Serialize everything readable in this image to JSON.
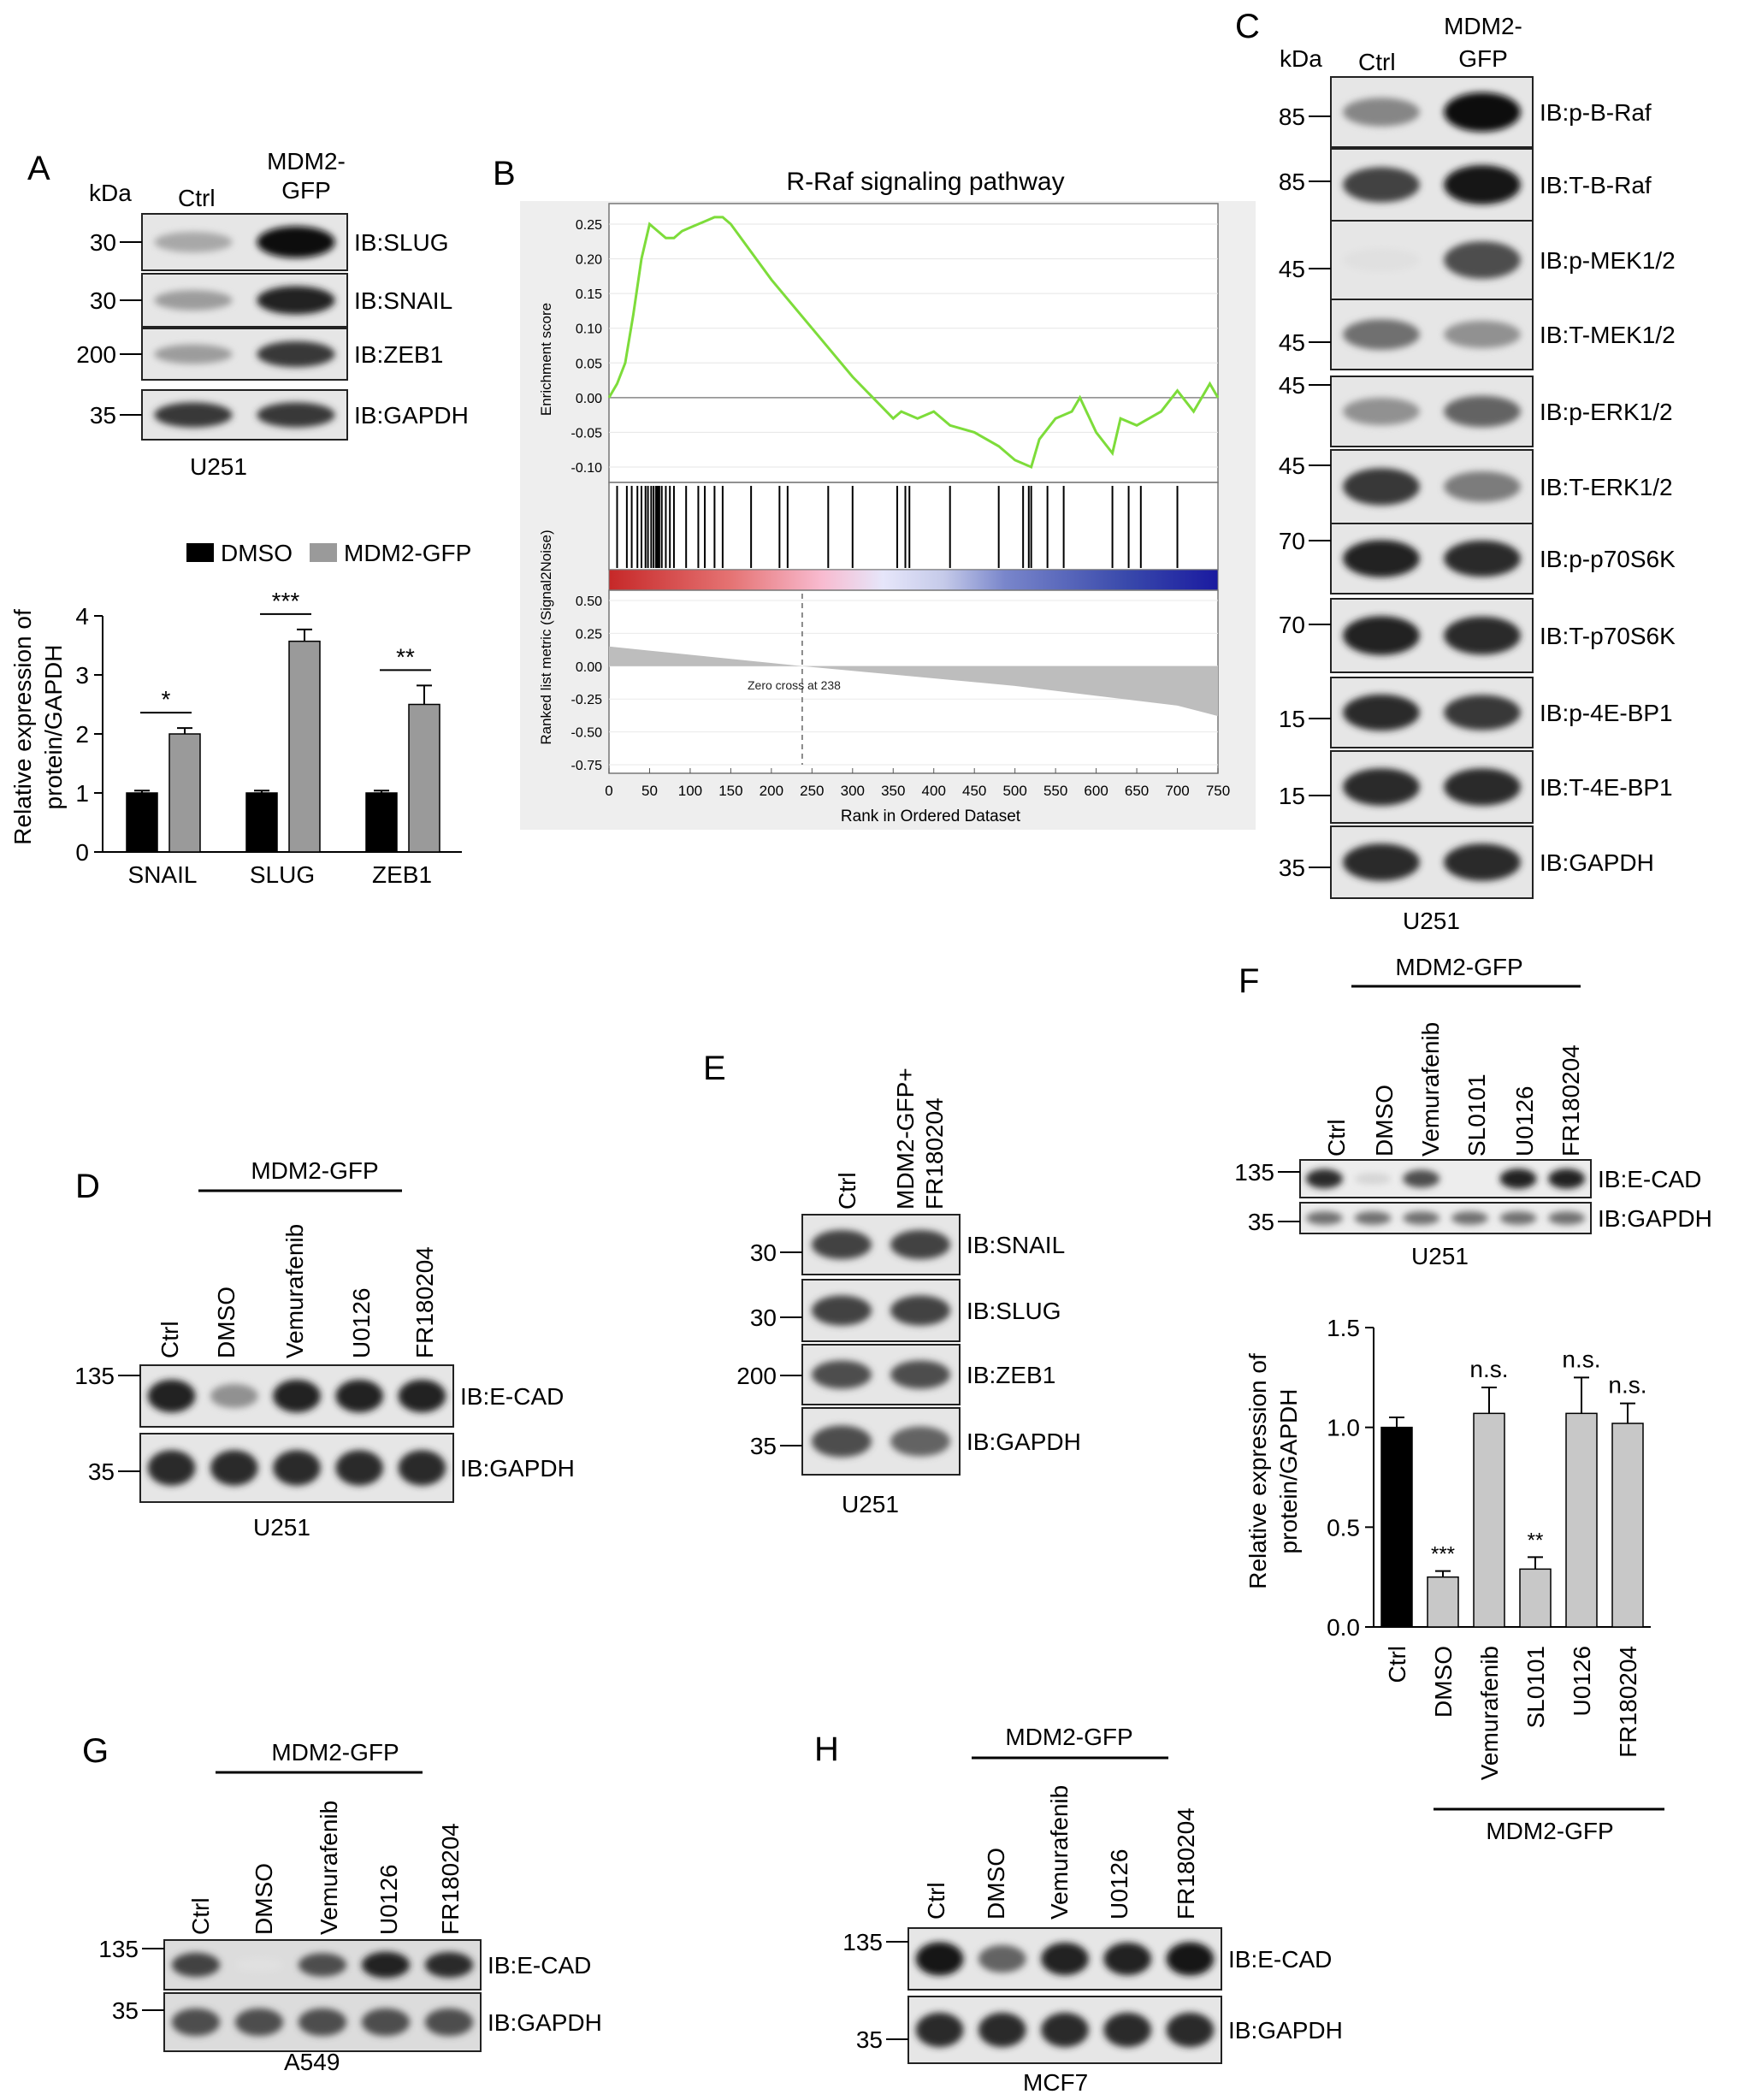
{
  "panels": {
    "A": {
      "letter": "A",
      "kda": "kDa",
      "lanes": [
        "Ctrl",
        "MDM2-\nGFP"
      ],
      "markers": [
        "30",
        "30",
        "200",
        "35"
      ],
      "blots": [
        "IB:SLUG",
        "IB:SNAIL",
        "IB:ZEB1",
        "IB:GAPDH"
      ],
      "cell_line": "U251",
      "legend": [
        "DMSO",
        "MDM2-GFP"
      ],
      "ylabel": "Relative expression of\nprotein/GAPDH"
    },
    "B": {
      "letter": "B",
      "title": "R-Raf signaling pathway",
      "es_ylabel": "Enrichment score",
      "rank_ylabel": "Ranked list metric (Signal2Noise)",
      "xlabel": "Rank in Ordered Dataset",
      "zero_cross": "Zero cross at 238"
    },
    "C": {
      "letter": "C",
      "kda": "kDa",
      "lanes": [
        "Ctrl",
        "MDM2-\nGFP"
      ],
      "markers": [
        "85",
        "85",
        "45",
        "45",
        "45",
        "45",
        "70",
        "70",
        "15",
        "15",
        "35"
      ],
      "blots": [
        "IB:p-B-Raf",
        "IB:T-B-Raf",
        "IB:p-MEK1/2",
        "IB:T-MEK1/2",
        "IB:p-ERK1/2",
        "IB:T-ERK1/2",
        "IB:p-p70S6K",
        "IB:T-p70S6K",
        "IB:p-4E-BP1",
        "IB:T-4E-BP1",
        "IB:GAPDH"
      ],
      "cell_line": "U251"
    },
    "D": {
      "letter": "D",
      "group": "MDM2-GFP",
      "lanes": [
        "Ctrl",
        "DMSO",
        "Vemurafenib",
        "U0126",
        "FR180204"
      ],
      "markers": [
        "135",
        "35"
      ],
      "blots": [
        "IB:E-CAD",
        "IB:GAPDH"
      ],
      "cell_line": "U251"
    },
    "E": {
      "letter": "E",
      "lanes": [
        "Ctrl",
        "MDM2-GFP+\nFR180204"
      ],
      "markers": [
        "30",
        "30",
        "200",
        "35"
      ],
      "blots": [
        "IB:SNAIL",
        "IB:SLUG",
        "IB:ZEB1",
        "IB:GAPDH"
      ],
      "cell_line": "U251"
    },
    "F": {
      "letter": "F",
      "group": "MDM2-GFP",
      "lanes": [
        "Ctrl",
        "DMSO",
        "Vemurafenib",
        "SL0101",
        "U0126",
        "FR180204"
      ],
      "markers": [
        "135",
        "35"
      ],
      "blots": [
        "IB:E-CAD",
        "IB:GAPDH"
      ],
      "cell_line": "U251",
      "ylabel": "Relative expression of\nprotein/GAPDH",
      "chart_group": "MDM2-GFP"
    },
    "G": {
      "letter": "G",
      "group": "MDM2-GFP",
      "lanes": [
        "Ctrl",
        "DMSO",
        "Vemurafenib",
        "U0126",
        "FR180204"
      ],
      "markers": [
        "135",
        "35"
      ],
      "blots": [
        "IB:E-CAD",
        "IB:GAPDH"
      ],
      "cell_line": "A549"
    },
    "H": {
      "letter": "H",
      "group": "MDM2-GFP",
      "lanes": [
        "Ctrl",
        "DMSO",
        "Vemurafenib",
        "U0126",
        "FR180204"
      ],
      "markers": [
        "135",
        "35"
      ],
      "blots": [
        "IB:E-CAD",
        "IB:GAPDH"
      ],
      "cell_line": "MCF7"
    }
  },
  "band_intensity": {
    "A": [
      [
        0.3,
        1.0
      ],
      [
        0.35,
        0.9
      ],
      [
        0.35,
        0.8
      ],
      [
        0.8,
        0.8
      ]
    ],
    "C": [
      [
        0.45,
        1.0
      ],
      [
        0.75,
        0.95
      ],
      [
        0.05,
        0.7
      ],
      [
        0.55,
        0.4
      ],
      [
        0.4,
        0.6
      ],
      [
        0.8,
        0.5
      ],
      [
        0.9,
        0.85
      ],
      [
        0.9,
        0.85
      ],
      [
        0.85,
        0.8
      ],
      [
        0.85,
        0.85
      ],
      [
        0.85,
        0.85
      ]
    ],
    "D": [
      [
        0.9,
        0.4,
        0.9,
        0.9,
        0.9
      ],
      [
        0.85,
        0.85,
        0.85,
        0.85,
        0.85
      ]
    ],
    "E": [
      [
        0.75,
        0.75
      ],
      [
        0.75,
        0.75
      ],
      [
        0.7,
        0.7
      ],
      [
        0.7,
        0.6
      ]
    ],
    "F": [
      [
        0.85,
        0.1,
        0.7,
        0.0,
        0.9,
        0.9
      ],
      [
        0.55,
        0.55,
        0.55,
        0.55,
        0.55,
        0.55
      ]
    ],
    "G": [
      [
        0.75,
        0.05,
        0.7,
        0.9,
        0.85
      ],
      [
        0.7,
        0.7,
        0.7,
        0.7,
        0.7
      ]
    ],
    "H": [
      [
        0.95,
        0.6,
        0.9,
        0.9,
        0.95
      ],
      [
        0.85,
        0.85,
        0.85,
        0.85,
        0.85
      ]
    ]
  },
  "chart_data": [
    {
      "id": "A-bar",
      "type": "bar",
      "categories": [
        "SNAIL",
        "SLUG",
        "ZEB1"
      ],
      "series": [
        {
          "name": "DMSO",
          "values": [
            1.0,
            1.0,
            1.0
          ],
          "errors": [
            0.04,
            0.04,
            0.04
          ],
          "color": "#000000"
        },
        {
          "name": "MDM2-GFP",
          "values": [
            2.0,
            3.57,
            2.5
          ],
          "errors": [
            0.1,
            0.2,
            0.32
          ],
          "color": "#9a9a9a"
        }
      ],
      "significance": [
        "*",
        "***",
        "**"
      ],
      "yticks": [
        "0",
        "1",
        "2",
        "3",
        "4"
      ],
      "ylim": [
        0,
        4
      ],
      "ylabel": "Relative expression of\nprotein/GAPDH"
    },
    {
      "id": "B-gsea",
      "type": "line",
      "title": "R-Raf signaling pathway",
      "x": [
        0,
        10,
        20,
        30,
        40,
        50,
        60,
        70,
        80,
        90,
        100,
        110,
        120,
        130,
        140,
        150,
        200,
        250,
        300,
        350,
        360,
        380,
        400,
        420,
        450,
        480,
        500,
        520,
        530,
        550,
        570,
        580,
        600,
        620,
        630,
        650,
        680,
        700,
        720,
        740,
        750
      ],
      "y": [
        0.0,
        0.02,
        0.05,
        0.12,
        0.2,
        0.25,
        0.24,
        0.23,
        0.23,
        0.24,
        0.245,
        0.25,
        0.255,
        0.26,
        0.26,
        0.25,
        0.17,
        0.1,
        0.03,
        -0.03,
        -0.02,
        -0.03,
        -0.02,
        -0.04,
        -0.05,
        -0.07,
        -0.09,
        -0.1,
        -0.06,
        -0.03,
        -0.02,
        0.0,
        -0.05,
        -0.08,
        -0.03,
        -0.04,
        -0.02,
        0.01,
        -0.02,
        0.02,
        0.0
      ],
      "es_ylim": [
        -0.1,
        0.25
      ],
      "es_yticks": [
        "0.25",
        "0.20",
        "0.15",
        "0.10",
        "0.05",
        "0.00",
        "-0.05",
        "-0.10"
      ],
      "rank_yticks": [
        "0.50",
        "0.25",
        "0.00",
        "-0.25",
        "-0.50",
        "-0.75"
      ],
      "rank_ylim": [
        -0.75,
        0.5
      ],
      "rank_metric": {
        "x": [
          0,
          238,
          500,
          700,
          750
        ],
        "y": [
          0.15,
          0.0,
          -0.15,
          -0.3,
          -0.38
        ]
      },
      "hits": [
        10,
        22,
        28,
        35,
        40,
        45,
        48,
        52,
        55,
        58,
        60,
        62,
        65,
        70,
        75,
        80,
        95,
        110,
        118,
        130,
        140,
        175,
        210,
        220,
        270,
        300,
        355,
        365,
        370,
        420,
        480,
        510,
        517,
        520,
        540,
        560,
        620,
        640,
        655,
        700
      ],
      "xticks": [
        "0",
        "50",
        "100",
        "150",
        "200",
        "250",
        "300",
        "350",
        "400",
        "450",
        "500",
        "550",
        "600",
        "650",
        "700",
        "750"
      ],
      "xlim": [
        0,
        750
      ],
      "xlabel": "Rank in Ordered Dataset"
    },
    {
      "id": "F-bar",
      "type": "bar",
      "categories": [
        "Ctrl",
        "DMSO",
        "Vemurafenib",
        "SL0101",
        "U0126",
        "FR180204"
      ],
      "values": [
        1.0,
        0.25,
        1.07,
        0.29,
        1.07,
        1.02
      ],
      "errors": [
        0.05,
        0.03,
        0.13,
        0.06,
        0.18,
        0.1
      ],
      "colors": [
        "#000000",
        "#c8c8c8",
        "#c8c8c8",
        "#c8c8c8",
        "#c8c8c8",
        "#c8c8c8"
      ],
      "significance": [
        "",
        "***",
        "n.s.",
        "**",
        "n.s.",
        "n.s."
      ],
      "yticks": [
        "0.0",
        "0.5",
        "1.0",
        "1.5"
      ],
      "ylim": [
        0,
        1.5
      ],
      "ylabel": "Relative expression of\nprotein/GAPDH",
      "group_label": "MDM2-GFP"
    }
  ]
}
